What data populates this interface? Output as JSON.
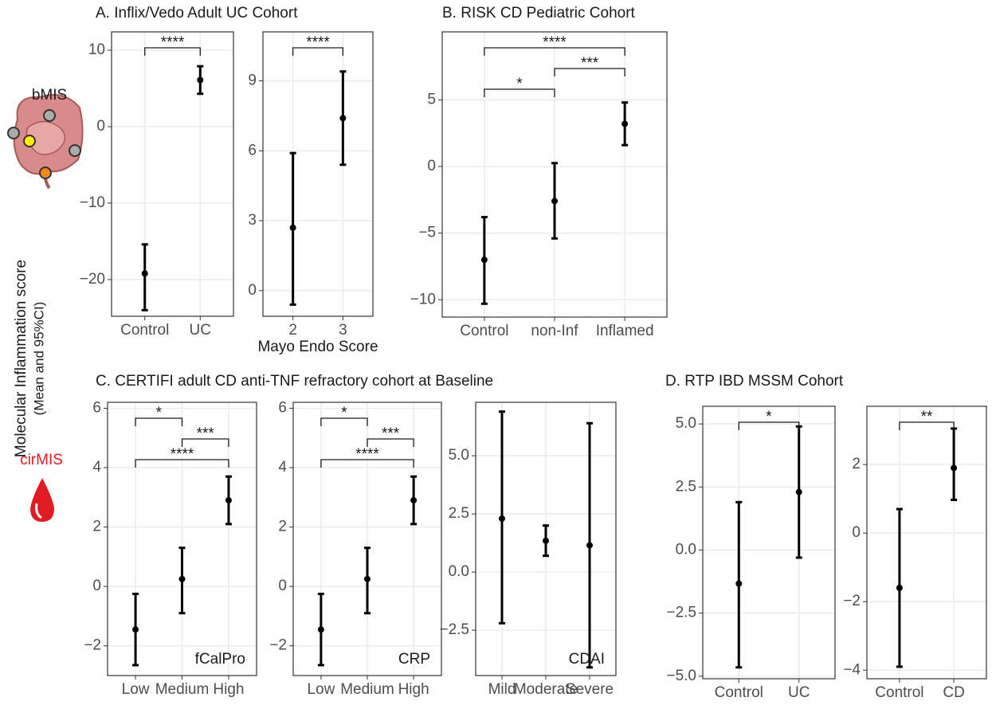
{
  "figure": {
    "ylabel": [
      "Molecular Inflammation score",
      "(Mean and 95%CI)"
    ],
    "bmis": "bMIS",
    "cirmis": "cirMIS"
  },
  "chart_data": [
    {
      "type": "pointrange",
      "title": "A. Inflix/Vedo Adult UC Cohort",
      "categories": [
        "Control",
        "UC"
      ],
      "values": [
        -19.2,
        6.1
      ],
      "lower": [
        -24.0,
        4.3
      ],
      "upper": [
        -15.4,
        7.9
      ],
      "color": "#000000",
      "ylim": [
        -24.8,
        12.4
      ],
      "yticks": [
        {
          "value": -20,
          "label": "−20"
        },
        {
          "value": -10,
          "label": "−10"
        },
        0,
        10
      ],
      "grid": true,
      "brackets": [
        {
          "groups": [
            "Control",
            "UC"
          ],
          "label": "****"
        }
      ]
    },
    {
      "type": "pointrange",
      "categories": [
        "2",
        "3"
      ],
      "xlabel": "Mayo Endo Score",
      "values": [
        2.7,
        7.4
      ],
      "lower": [
        -0.6,
        5.4
      ],
      "upper": [
        5.9,
        9.4
      ],
      "color": "#000000",
      "ylim": [
        -1.1,
        11.1
      ],
      "yticks": [
        0,
        3,
        6,
        9
      ],
      "grid": true,
      "brackets": [
        {
          "groups": [
            "2",
            "3"
          ],
          "label": "****"
        }
      ]
    },
    {
      "type": "pointrange",
      "title": "B. RISK CD Pediatric Cohort",
      "categories": [
        "Control",
        "non-Inf",
        "Inflamed"
      ],
      "values": [
        -7.0,
        -2.6,
        3.2
      ],
      "lower": [
        -10.3,
        -5.4,
        1.6
      ],
      "upper": [
        -3.8,
        0.25,
        4.8
      ],
      "color": "#000000",
      "ylim": [
        -11.3,
        10.1
      ],
      "yticks": [
        {
          "value": -10,
          "label": "−10"
        },
        {
          "value": -5,
          "label": "−5"
        },
        0,
        5
      ],
      "grid": true,
      "brackets": [
        {
          "groups": [
            "Control",
            "non-Inf"
          ],
          "label": "*"
        },
        {
          "groups": [
            "non-Inf",
            "Inflamed"
          ],
          "label": "***"
        },
        {
          "groups": [
            "Control",
            "Inflamed"
          ],
          "label": "****"
        }
      ]
    },
    {
      "type": "pointrange",
      "title": "C. CERTIFI adult CD anti-TNF refractory cohort at Baseline",
      "categories": [
        "Low",
        "Medium",
        "High"
      ],
      "annotation": "fCalPro",
      "values": [
        -1.45,
        0.25,
        2.9
      ],
      "lower": [
        -2.65,
        -0.9,
        2.1
      ],
      "upper": [
        -0.25,
        1.3,
        3.7
      ],
      "color": "#000000",
      "ylim": [
        -3.0,
        6.2
      ],
      "yticks": [
        {
          "value": -2,
          "label": "−2"
        },
        0,
        2,
        4,
        6
      ],
      "grid": true,
      "brackets": [
        {
          "groups": [
            "Low",
            "High"
          ],
          "label": "****"
        },
        {
          "groups": [
            "Medium",
            "High"
          ],
          "label": "***"
        },
        {
          "groups": [
            "Low",
            "Medium"
          ],
          "label": "*"
        }
      ]
    },
    {
      "type": "pointrange",
      "categories": [
        "Low",
        "Medium",
        "High"
      ],
      "annotation": "CRP",
      "values": [
        -1.45,
        0.25,
        2.9
      ],
      "lower": [
        -2.65,
        -0.9,
        2.1
      ],
      "upper": [
        -0.25,
        1.3,
        3.7
      ],
      "color": "#000000",
      "ylim": [
        -3.0,
        6.2
      ],
      "yticks": [
        {
          "value": -2,
          "label": "−2"
        },
        0,
        2,
        4,
        6
      ],
      "grid": true,
      "brackets": [
        {
          "groups": [
            "Low",
            "High"
          ],
          "label": "****"
        },
        {
          "groups": [
            "Medium",
            "High"
          ],
          "label": "***"
        },
        {
          "groups": [
            "Low",
            "Medium"
          ],
          "label": "*"
        }
      ]
    },
    {
      "type": "pointrange",
      "categories": [
        "Mild",
        "Moderate",
        "Severe"
      ],
      "annotation": "CDAI",
      "values": [
        2.3,
        1.35,
        1.15
      ],
      "lower": [
        -2.2,
        0.7,
        -4.1
      ],
      "upper": [
        6.9,
        2.0,
        6.4
      ],
      "color": "#000000",
      "ylim": [
        -4.45,
        7.3
      ],
      "yticks": [
        {
          "value": -2.5,
          "label": "−2.5"
        },
        {
          "value": 0,
          "label": "0.0"
        },
        2.5,
        {
          "value": 5,
          "label": "5.0"
        }
      ],
      "grid": true,
      "brackets": []
    },
    {
      "type": "pointrange",
      "title": "D. RTP IBD MSSM Cohort",
      "categories": [
        "Control",
        "UC"
      ],
      "values": [
        -1.33,
        2.3
      ],
      "lower": [
        -4.65,
        -0.3
      ],
      "upper": [
        1.9,
        4.9
      ],
      "color": "#000000",
      "ylim": [
        -5.1,
        5.7
      ],
      "yticks": [
        {
          "value": -5,
          "label": "−5.0"
        },
        {
          "value": -2.5,
          "label": "−2.5"
        },
        {
          "value": 0,
          "label": "0.0"
        },
        2.5,
        {
          "value": 5,
          "label": "5.0"
        }
      ],
      "grid": true,
      "brackets": [
        {
          "groups": [
            "Control",
            "UC"
          ],
          "label": "*"
        }
      ]
    },
    {
      "type": "pointrange",
      "categories": [
        "Control",
        "CD"
      ],
      "values": [
        -1.6,
        1.9
      ],
      "lower": [
        -3.9,
        0.97
      ],
      "upper": [
        0.7,
        3.05
      ],
      "color": "#000000",
      "ylim": [
        -4.25,
        3.7
      ],
      "yticks": [
        {
          "value": -4,
          "label": "−4"
        },
        {
          "value": -2,
          "label": "−2"
        },
        0,
        2
      ],
      "grid": true,
      "brackets": [
        {
          "groups": [
            "Control",
            "CD"
          ],
          "label": "**"
        }
      ]
    }
  ]
}
